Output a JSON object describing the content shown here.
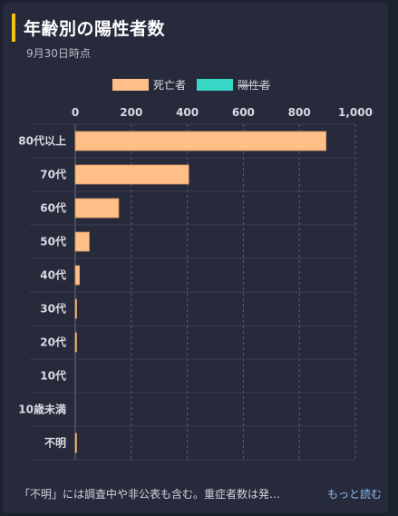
{
  "header": {
    "title": "年齢別の陽性者数",
    "subtitle": "9月30日時点"
  },
  "legend": [
    {
      "label": "死亡者",
      "color": "#ffbf87",
      "hidden": false
    },
    {
      "label": "陽性者",
      "color": "#38d8c6",
      "hidden": true
    }
  ],
  "chart_data": {
    "type": "bar",
    "orientation": "horizontal",
    "categories": [
      "80代以上",
      "70代",
      "60代",
      "50代",
      "40代",
      "30代",
      "20代",
      "10代",
      "10歳未満",
      "不明"
    ],
    "series": [
      {
        "name": "死亡者",
        "color": "#ffbf87",
        "values": [
          895,
          405,
          155,
          50,
          15,
          5,
          1,
          0,
          0,
          3
        ]
      },
      {
        "name": "陽性者",
        "color": "#38d8c6",
        "visible": false
      }
    ],
    "xlim": [
      0,
      1000
    ],
    "xticks": [
      0,
      200,
      400,
      600,
      800,
      1000
    ],
    "xtick_labels": [
      "0",
      "200",
      "400",
      "600",
      "800",
      "1,000"
    ],
    "axis_position": "top",
    "grid": true
  },
  "footer": {
    "note": "「不明」には調査中や非公表も含む。重症者数は発…",
    "more_label": "もっと読む"
  }
}
